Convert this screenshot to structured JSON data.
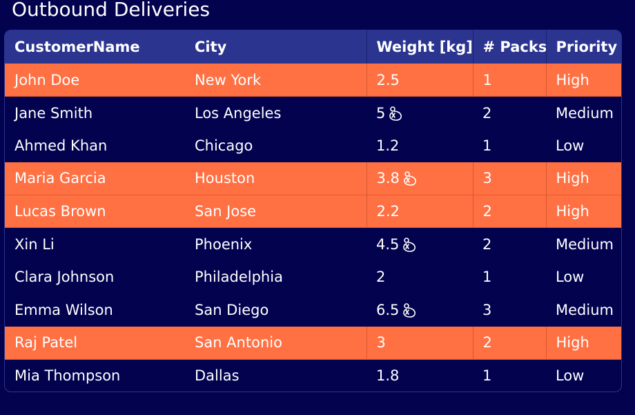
{
  "title": "Outbound Deliveries",
  "columns": [
    "CustomerName",
    "City",
    "Weight [kg]",
    "# Packs",
    "Priority"
  ],
  "colors": {
    "background": "#02024f",
    "header": "#2b3590",
    "high_priority_row": "#ff7043"
  },
  "rows": [
    {
      "name": "John Doe",
      "city": "New York",
      "weight": "2.5",
      "packs": "1",
      "priority": "High",
      "heavy": false
    },
    {
      "name": "Jane Smith",
      "city": "Los Angeles",
      "weight": "5",
      "packs": "2",
      "priority": "Medium",
      "heavy": true
    },
    {
      "name": "Ahmed Khan",
      "city": "Chicago",
      "weight": "1.2",
      "packs": "1",
      "priority": "Low",
      "heavy": false
    },
    {
      "name": "Maria Garcia",
      "city": "Houston",
      "weight": "3.8",
      "packs": "3",
      "priority": "High",
      "heavy": true
    },
    {
      "name": "Lucas Brown",
      "city": "San Jose",
      "weight": "2.2",
      "packs": "2",
      "priority": "High",
      "heavy": false
    },
    {
      "name": "Xin Li",
      "city": "Phoenix",
      "weight": "4.5",
      "packs": "2",
      "priority": "Medium",
      "heavy": true
    },
    {
      "name": "Clara Johnson",
      "city": "Philadelphia",
      "weight": "2",
      "packs": "1",
      "priority": "Low",
      "heavy": false
    },
    {
      "name": "Emma Wilson",
      "city": "San Diego",
      "weight": "6.5",
      "packs": "3",
      "priority": "Medium",
      "heavy": true
    },
    {
      "name": "Raj Patel",
      "city": "San Antonio",
      "weight": "3",
      "packs": "2",
      "priority": "High",
      "heavy": false
    },
    {
      "name": "Mia Thompson",
      "city": "Dallas",
      "weight": "1.8",
      "packs": "1",
      "priority": "Low",
      "heavy": false
    }
  ],
  "heavy_icon": "weight-icon"
}
